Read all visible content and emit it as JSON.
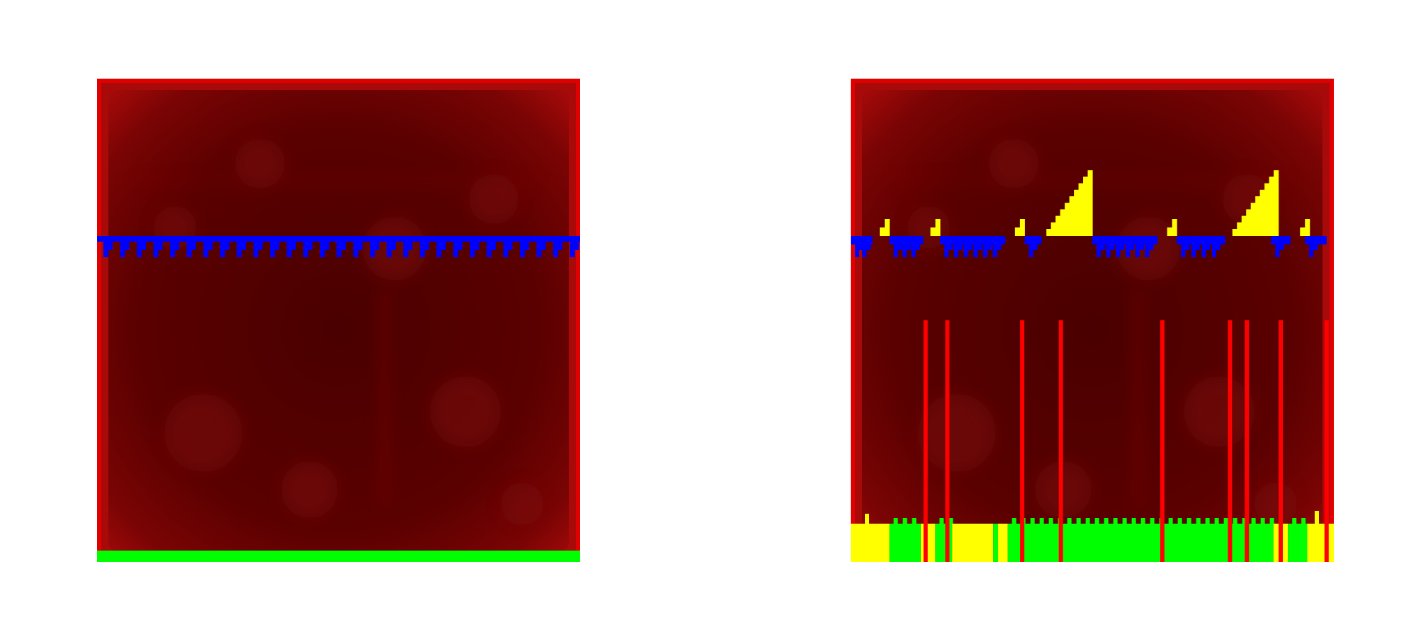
{
  "colors": {
    "background": "#ffffff",
    "frame_edge": "#e00000",
    "frame_mid": "#a80a0a",
    "interior": "#5a0000",
    "interior_blob": "#7a0808",
    "blue_marker": "#0000ff",
    "yellow_marker": "#ffff00",
    "green_marker": "#00ff00",
    "red_line": "#ff0000"
  },
  "panels": [
    {
      "id": "left",
      "blue_teeth_count": 29,
      "green_band": true
    },
    {
      "id": "right",
      "blue_groups": [
        {
          "start": 0.0,
          "end": 0.045,
          "teeth": 2
        },
        {
          "start": 0.08,
          "end": 0.15,
          "teeth": 3
        },
        {
          "start": 0.185,
          "end": 0.32,
          "teeth": 6
        },
        {
          "start": 0.36,
          "end": 0.395,
          "teeth": 1
        },
        {
          "start": 0.5,
          "end": 0.635,
          "teeth": 6
        },
        {
          "start": 0.675,
          "end": 0.775,
          "teeth": 4
        },
        {
          "start": 0.87,
          "end": 0.91,
          "teeth": 1
        },
        {
          "start": 0.94,
          "end": 0.985,
          "teeth": 1
        }
      ],
      "yellow_small_steps": [
        0.06,
        0.165,
        0.34,
        0.655,
        0.93
      ],
      "yellow_ramps": [
        {
          "start": 0.405,
          "end": 0.5
        },
        {
          "start": 0.79,
          "end": 0.885
        }
      ],
      "red_line_positions": [
        0.155,
        0.2,
        0.355,
        0.435,
        0.645,
        0.785,
        0.82,
        0.89,
        0.985
      ],
      "bottom_segments": [
        {
          "color": "yellow",
          "start": 0.0,
          "end": 0.08
        },
        {
          "color": "green",
          "start": 0.08,
          "end": 0.145
        },
        {
          "color": "yellow",
          "start": 0.145,
          "end": 0.175
        },
        {
          "color": "green",
          "start": 0.175,
          "end": 0.21
        },
        {
          "color": "yellow",
          "start": 0.21,
          "end": 0.295
        },
        {
          "color": "green",
          "start": 0.295,
          "end": 0.305
        },
        {
          "color": "yellow",
          "start": 0.305,
          "end": 0.325
        },
        {
          "color": "green",
          "start": 0.325,
          "end": 0.875
        },
        {
          "color": "yellow",
          "start": 0.875,
          "end": 0.905
        },
        {
          "color": "green",
          "start": 0.905,
          "end": 0.945
        },
        {
          "color": "yellow",
          "start": 0.945,
          "end": 1.0
        }
      ]
    }
  ]
}
